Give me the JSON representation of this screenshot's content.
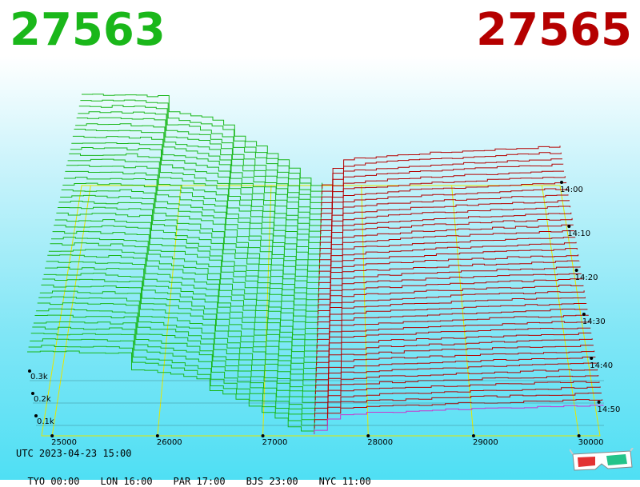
{
  "header": {
    "bid_price": "27563",
    "ask_price": "27565",
    "bid_color": "#1ab71a",
    "ask_color": "#b50000"
  },
  "footer": {
    "utc": "UTC 2023-04-23 15:00",
    "clocks": [
      {
        "city": "TYO",
        "time": "00:00"
      },
      {
        "city": "LON",
        "time": "16:00"
      },
      {
        "city": "PAR",
        "time": "17:00"
      },
      {
        "city": "BJS",
        "time": "23:00"
      },
      {
        "city": "NYC",
        "time": "11:00"
      }
    ]
  },
  "icons": {
    "glasses": "3d-glasses-icon"
  },
  "chart_data": {
    "type": "area",
    "title": "",
    "xlabel": "",
    "ylabel": "",
    "x_ticks": [
      25000,
      26000,
      27000,
      28000,
      29000,
      30000
    ],
    "x_tick_labels": [
      "25000",
      "26000",
      "27000",
      "28000",
      "29000",
      "30000"
    ],
    "xlim": [
      24900,
      30200
    ],
    "mid_price": 27564,
    "time_ticks": [
      "14:00",
      "14:10",
      "14:20",
      "14:30",
      "14:40",
      "14:50"
    ],
    "volume_ticks": [
      {
        "value": 100,
        "label": "0.1k"
      },
      {
        "value": 200,
        "label": "0.2k"
      },
      {
        "value": 300,
        "label": "0.3k"
      }
    ],
    "series": [
      {
        "side": "bid",
        "color": "#1ab71a"
      },
      {
        "side": "ask",
        "color": "#b50000"
      }
    ],
    "grid": true
  }
}
